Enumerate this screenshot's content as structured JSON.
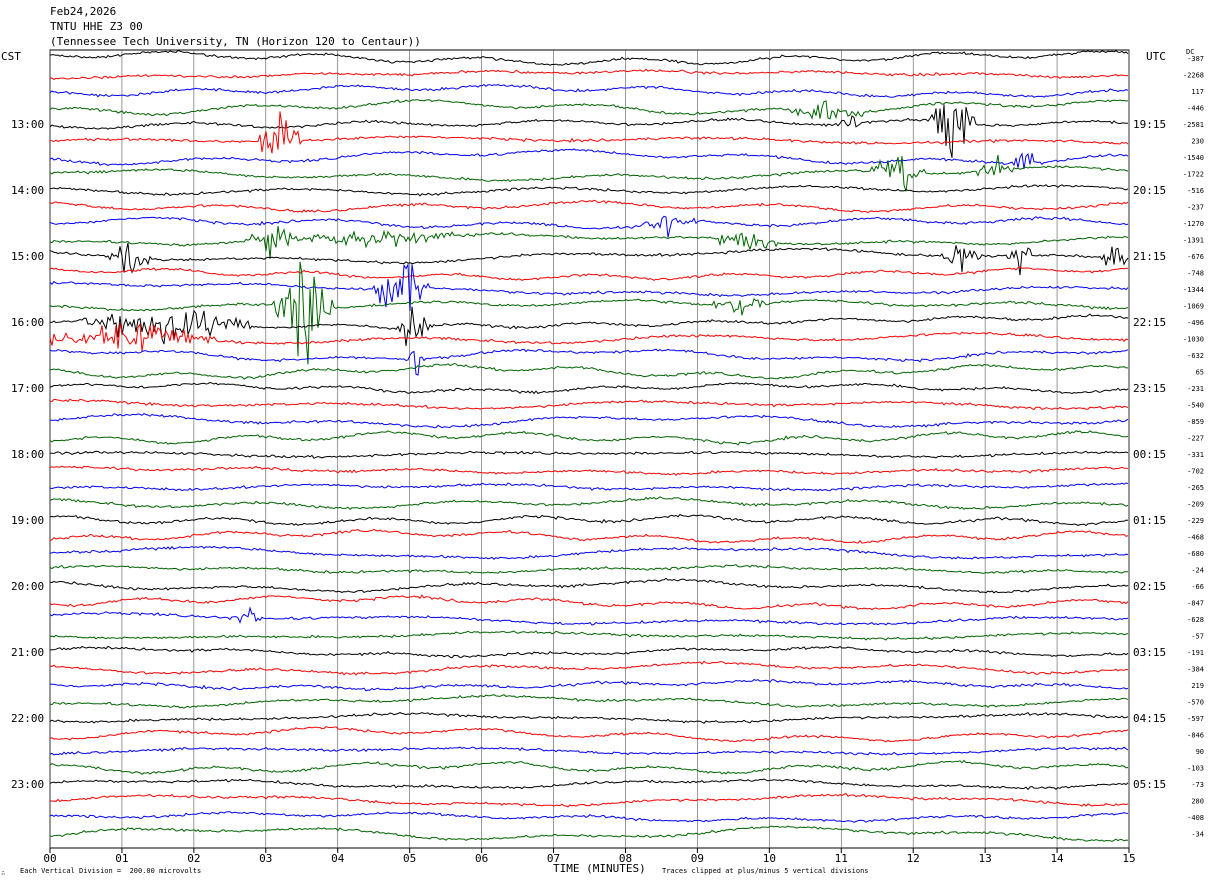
{
  "header": {
    "date": "Feb24,2026",
    "station": "TNTU HHE Z3 00",
    "site": "(Tennessee Tech University, TN (Horizon 120 to Centaur))"
  },
  "labels": {
    "left_timezone": "CST",
    "right_timezone": "UTC",
    "dc_header": "DC",
    "logo": "∴"
  },
  "footer": {
    "scale_note": "Each Vertical Division =  200.00 microvolts",
    "clip_note": "Traces clipped at plus/minus 5 vertical divisions"
  },
  "chart_data": {
    "type": "line",
    "title": "",
    "xlabel": "TIME (MINUTES)",
    "x_ticks": [
      "00",
      "01",
      "02",
      "03",
      "04",
      "05",
      "06",
      "07",
      "08",
      "09",
      "10",
      "11",
      "12",
      "13",
      "14",
      "15"
    ],
    "xlim": [
      0,
      15
    ],
    "grid": "vertical lines at each minute",
    "trace_colors": [
      "#000000",
      "#ff0000",
      "#0000ff",
      "#006400"
    ],
    "left_time_labels": [
      "13:00",
      "14:00",
      "15:00",
      "16:00",
      "17:00",
      "18:00",
      "19:00",
      "20:00",
      "21:00",
      "22:00",
      "23:00"
    ],
    "right_time_labels": [
      "19:15",
      "20:15",
      "21:15",
      "22:15",
      "23:15",
      "00:15",
      "01:15",
      "02:15",
      "03:15",
      "04:15",
      "05:15"
    ],
    "trace_count": 48,
    "dc_offsets": [
      "-387",
      "-2268",
      "117",
      "-446",
      "-2581",
      "230",
      "-1540",
      "-1722",
      "-516",
      "-237",
      "-1270",
      "-1391",
      "-676",
      "-748",
      "-1344",
      "-1069",
      "-496",
      "-1030",
      "-632",
      "65",
      "-231",
      "-540",
      "-859",
      "-227",
      "-331",
      "-702",
      "-265",
      "-209",
      "-229",
      "-468",
      "-680",
      "-24",
      "-66",
      "-847",
      "-628",
      "-57",
      "-191",
      "-384",
      "219",
      "-570",
      "-597",
      "-846",
      "90",
      "-103",
      "-73",
      "280",
      "-408",
      "-34"
    ],
    "events": [
      {
        "trace": 5,
        "start_min": 2.9,
        "end_min": 3.5,
        "amplitude": 4
      },
      {
        "trace": 3,
        "start_min": 10.3,
        "end_min": 11.3,
        "amplitude": 2
      },
      {
        "trace": 4,
        "start_min": 11.0,
        "end_min": 11.3,
        "amplitude": 1.5
      },
      {
        "trace": 4,
        "start_min": 12.2,
        "end_min": 12.9,
        "amplitude": 5
      },
      {
        "trace": 6,
        "start_min": 13.3,
        "end_min": 13.8,
        "amplitude": 1.5
      },
      {
        "trace": 7,
        "start_min": 11.4,
        "end_min": 12.2,
        "amplitude": 3
      },
      {
        "trace": 7,
        "start_min": 12.9,
        "end_min": 13.4,
        "amplitude": 1.5
      },
      {
        "trace": 11,
        "start_min": 2.7,
        "end_min": 3.4,
        "amplitude": 3
      },
      {
        "trace": 11,
        "start_min": 3.0,
        "end_min": 6.0,
        "amplitude": 1.0
      },
      {
        "trace": 10,
        "start_min": 8.2,
        "end_min": 9.0,
        "amplitude": 1.5
      },
      {
        "trace": 11,
        "start_min": 9.3,
        "end_min": 10.1,
        "amplitude": 2.5
      },
      {
        "trace": 12,
        "start_min": 0.8,
        "end_min": 1.4,
        "amplitude": 2.5
      },
      {
        "trace": 12,
        "start_min": 12.4,
        "end_min": 13.0,
        "amplitude": 2
      },
      {
        "trace": 12,
        "start_min": 13.3,
        "end_min": 13.7,
        "amplitude": 2
      },
      {
        "trace": 12,
        "start_min": 14.6,
        "end_min": 15.0,
        "amplitude": 2
      },
      {
        "trace": 14,
        "start_min": 4.5,
        "end_min": 5.3,
        "amplitude": 5
      },
      {
        "trace": 15,
        "start_min": 3.1,
        "end_min": 4.0,
        "amplitude": 5
      },
      {
        "trace": 15,
        "start_min": 9.2,
        "end_min": 10.0,
        "amplitude": 1.5
      },
      {
        "trace": 16,
        "start_min": 0.4,
        "end_min": 2.8,
        "amplitude": 3
      },
      {
        "trace": 16,
        "start_min": 4.8,
        "end_min": 5.3,
        "amplitude": 3
      },
      {
        "trace": 17,
        "start_min": 0.0,
        "end_min": 2.3,
        "amplitude": 2
      },
      {
        "trace": 18,
        "start_min": 5.0,
        "end_min": 5.2,
        "amplitude": 3
      },
      {
        "trace": 34,
        "start_min": 2.5,
        "end_min": 3.0,
        "amplitude": 1.2
      }
    ]
  }
}
